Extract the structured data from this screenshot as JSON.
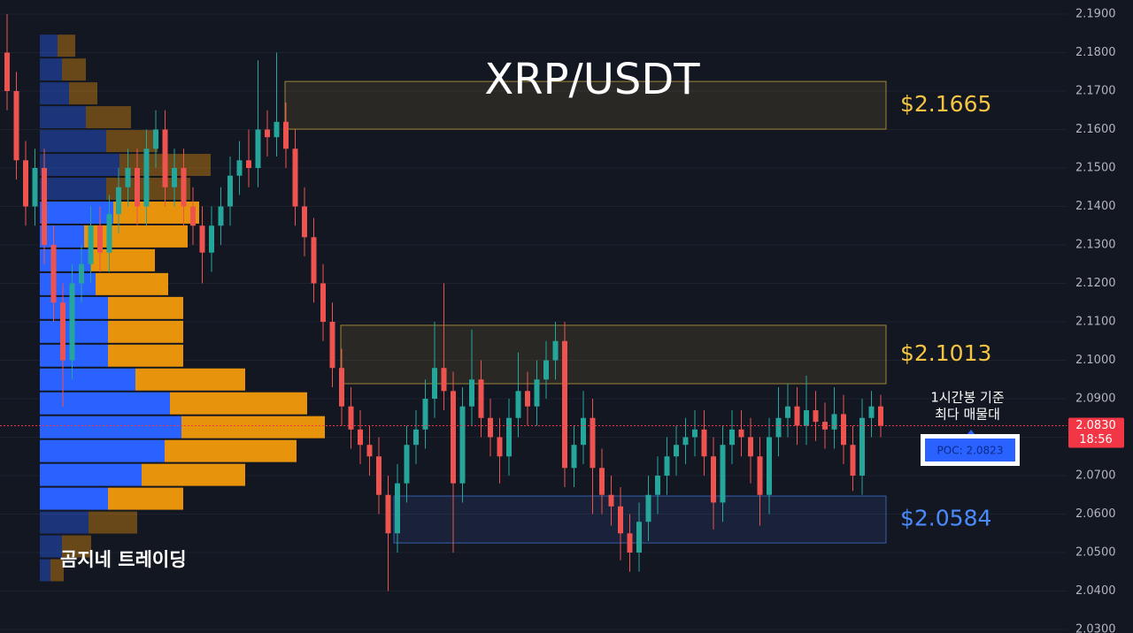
{
  "chart_data": {
    "type": "candlestick",
    "title": "XRP/USDT",
    "watermark": "곰지네 트레이딩",
    "ylim": [
      2.03,
      2.19
    ],
    "yticks": [
      {
        "value": 2.03,
        "label": "2.0300"
      },
      {
        "value": 2.04,
        "label": "2.0400"
      },
      {
        "value": 2.05,
        "label": "2.0500"
      },
      {
        "value": 2.06,
        "label": "2.0600"
      },
      {
        "value": 2.07,
        "label": "2.0700"
      },
      {
        "value": 2.08,
        "label": "2.0800"
      },
      {
        "value": 2.09,
        "label": "2.0900"
      },
      {
        "value": 2.1,
        "label": "2.1000"
      },
      {
        "value": 2.11,
        "label": "2.1100"
      },
      {
        "value": 2.12,
        "label": "2.1200"
      },
      {
        "value": 2.13,
        "label": "2.1300"
      },
      {
        "value": 2.14,
        "label": "2.1400"
      },
      {
        "value": 2.15,
        "label": "2.1500"
      },
      {
        "value": 2.16,
        "label": "2.1600"
      },
      {
        "value": 2.17,
        "label": "2.1700"
      },
      {
        "value": 2.18,
        "label": "2.1800"
      },
      {
        "value": 2.19,
        "label": "2.1900"
      }
    ],
    "grid": true,
    "up_color": "#26a69a",
    "down_color": "#ef5350",
    "open": [
      2.18,
      2.17,
      2.152,
      2.14,
      2.15,
      2.13,
      2.115,
      2.1,
      2.12,
      2.125,
      2.135,
      2.128,
      2.138,
      2.145,
      2.15,
      2.14,
      2.155,
      2.16,
      2.145,
      2.15,
      2.14,
      2.135,
      2.128,
      2.135,
      2.14,
      2.148,
      2.152,
      2.15,
      2.16,
      2.158,
      2.162,
      2.155,
      2.14,
      2.132,
      2.12,
      2.11,
      2.098,
      2.088,
      2.082,
      2.078,
      2.075,
      2.065,
      2.055,
      2.068,
      2.078,
      2.082,
      2.09,
      2.098,
      2.092,
      2.068,
      2.088,
      2.095,
      2.085,
      2.08,
      2.075,
      2.085,
      2.092,
      2.088,
      2.095,
      2.1,
      2.105,
      2.072,
      2.078,
      2.085,
      2.072,
      2.065,
      2.062,
      2.055,
      2.05,
      2.058,
      2.065,
      2.07,
      2.075,
      2.078,
      2.08,
      2.082,
      2.075,
      2.063,
      2.078,
      2.082,
      2.08,
      2.075,
      2.065,
      2.08,
      2.085,
      2.088,
      2.083,
      2.087,
      2.084,
      2.082,
      2.086,
      2.078,
      2.07,
      2.085,
      2.088
    ],
    "high": [
      2.19,
      2.175,
      2.157,
      2.155,
      2.155,
      2.135,
      2.12,
      2.125,
      2.13,
      2.14,
      2.14,
      2.143,
      2.15,
      2.155,
      2.155,
      2.16,
      2.165,
      2.165,
      2.155,
      2.155,
      2.145,
      2.14,
      2.14,
      2.145,
      2.153,
      2.157,
      2.16,
      2.178,
      2.165,
      2.18,
      2.167,
      2.16,
      2.145,
      2.137,
      2.125,
      2.115,
      2.103,
      2.093,
      2.087,
      2.083,
      2.08,
      2.07,
      2.073,
      2.083,
      2.087,
      2.095,
      2.11,
      2.12,
      2.097,
      2.093,
      2.108,
      2.1,
      2.09,
      2.085,
      2.09,
      2.102,
      2.097,
      2.1,
      2.105,
      2.11,
      2.11,
      2.083,
      2.092,
      2.09,
      2.077,
      2.07,
      2.067,
      2.06,
      2.063,
      2.07,
      2.075,
      2.08,
      2.083,
      2.085,
      2.087,
      2.087,
      2.08,
      2.083,
      2.087,
      2.087,
      2.085,
      2.08,
      2.085,
      2.093,
      2.094,
      2.093,
      2.096,
      2.092,
      2.089,
      2.093,
      2.091,
      2.083,
      2.09,
      2.092,
      2.091
    ],
    "low": [
      2.165,
      2.147,
      2.135,
      2.135,
      2.125,
      2.11,
      2.088,
      2.095,
      2.115,
      2.12,
      2.123,
      2.123,
      2.133,
      2.14,
      2.135,
      2.135,
      2.15,
      2.14,
      2.14,
      2.135,
      2.13,
      2.12,
      2.123,
      2.13,
      2.135,
      2.143,
      2.145,
      2.145,
      2.153,
      2.153,
      2.15,
      2.135,
      2.127,
      2.115,
      2.105,
      2.093,
      2.083,
      2.077,
      2.073,
      2.07,
      2.06,
      2.04,
      2.05,
      2.063,
      2.073,
      2.077,
      2.085,
      2.087,
      2.05,
      2.063,
      2.083,
      2.08,
      2.075,
      2.068,
      2.07,
      2.08,
      2.083,
      2.083,
      2.09,
      2.095,
      2.067,
      2.067,
      2.073,
      2.06,
      2.06,
      2.057,
      2.048,
      2.045,
      2.045,
      2.053,
      2.06,
      2.065,
      2.07,
      2.073,
      2.075,
      2.07,
      2.056,
      2.058,
      2.073,
      2.075,
      2.068,
      2.057,
      2.06,
      2.075,
      2.08,
      2.078,
      2.078,
      2.079,
      2.077,
      2.077,
      2.073,
      2.066,
      2.065,
      2.08,
      2.08
    ],
    "close": [
      2.17,
      2.152,
      2.14,
      2.15,
      2.13,
      2.115,
      2.1,
      2.12,
      2.125,
      2.135,
      2.128,
      2.138,
      2.145,
      2.15,
      2.14,
      2.155,
      2.16,
      2.145,
      2.15,
      2.14,
      2.135,
      2.128,
      2.135,
      2.14,
      2.148,
      2.152,
      2.15,
      2.16,
      2.158,
      2.162,
      2.155,
      2.14,
      2.132,
      2.12,
      2.11,
      2.098,
      2.088,
      2.082,
      2.078,
      2.075,
      2.065,
      2.055,
      2.068,
      2.078,
      2.082,
      2.09,
      2.098,
      2.092,
      2.068,
      2.088,
      2.095,
      2.085,
      2.08,
      2.075,
      2.085,
      2.092,
      2.088,
      2.095,
      2.1,
      2.105,
      2.072,
      2.078,
      2.085,
      2.072,
      2.065,
      2.062,
      2.055,
      2.05,
      2.058,
      2.065,
      2.07,
      2.075,
      2.078,
      2.08,
      2.082,
      2.075,
      2.063,
      2.078,
      2.082,
      2.08,
      2.075,
      2.065,
      2.08,
      2.085,
      2.088,
      2.083,
      2.087,
      2.084,
      2.082,
      2.086,
      2.078,
      2.07,
      2.085,
      2.088,
      2.083
    ],
    "volume_profile": {
      "bins": [
        2.1849,
        2.1787,
        2.1725,
        2.1663,
        2.1601,
        2.1539,
        2.1477,
        2.1415,
        2.1353,
        2.1291,
        2.1229,
        2.1167,
        2.1105,
        2.1043,
        2.0981,
        2.0919,
        2.0857,
        2.0795,
        2.0733,
        2.0671,
        2.0609,
        2.0547,
        2.0485,
        2.0423
      ],
      "buy": [
        20,
        25,
        33,
        52,
        75,
        90,
        75,
        83,
        50,
        57,
        63,
        77,
        77,
        77,
        108,
        147,
        160,
        141,
        115,
        77,
        55,
        25,
        12
      ],
      "sell": [
        20,
        27,
        32,
        51,
        58,
        103,
        95,
        97,
        117,
        73,
        82,
        85,
        85,
        85,
        124,
        155,
        162,
        149,
        117,
        85,
        55,
        33,
        15
      ],
      "buy_color": "#2962ff",
      "sell_color": "#e8930c",
      "value_area": [
        2.0609,
        2.1415
      ]
    },
    "zones": [
      {
        "low": 2.1601,
        "high": 2.1725,
        "label": "$2.1665",
        "color": "#f5c542"
      },
      {
        "low": 2.0939,
        "high": 2.1091,
        "label": "$2.1013",
        "color": "#f5c542"
      },
      {
        "low": 2.0525,
        "high": 2.0647,
        "label": "$2.0584",
        "color": "#4a8cff"
      }
    ],
    "last_price": {
      "value": 2.083,
      "label": "2.0830",
      "time": "18:56",
      "color": "#f23645"
    },
    "poc": {
      "label": "POC: 2.0823",
      "note": [
        "1시간봉 기준",
        "최다 매물대"
      ]
    }
  }
}
